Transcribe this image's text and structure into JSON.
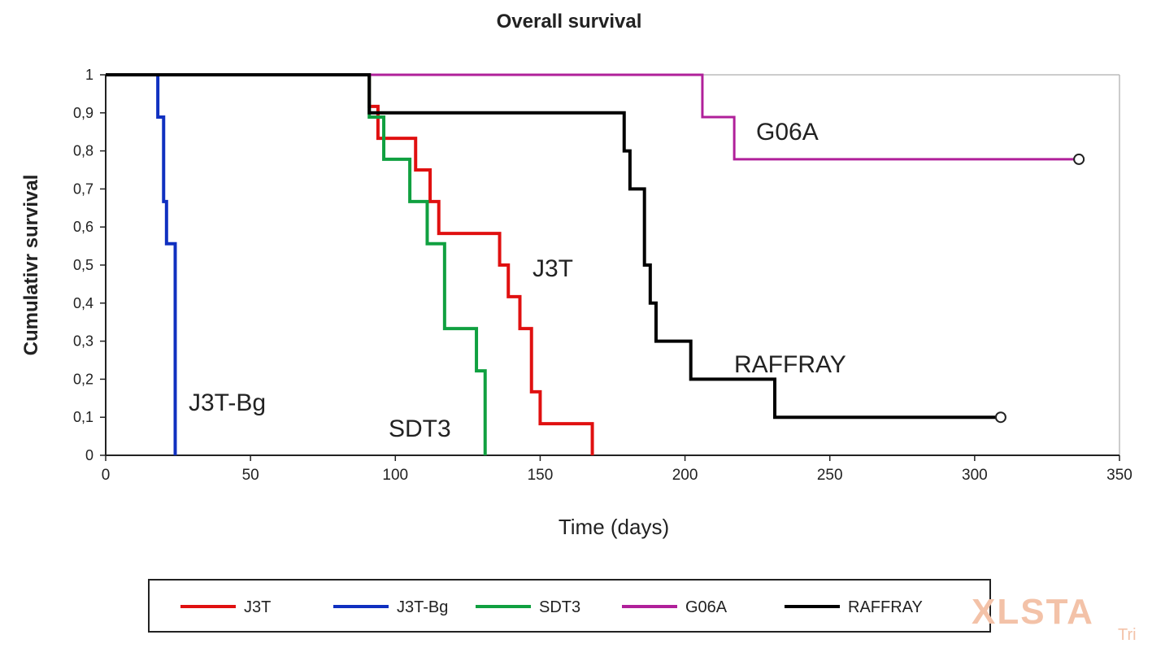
{
  "chart_data": {
    "type": "line",
    "subtype": "kaplan-meier step",
    "title": "Overall survival",
    "xlabel": "Time  (days)",
    "ylabel": "Cumulativr survival",
    "xlim": [
      0,
      350
    ],
    "ylim": [
      0,
      1
    ],
    "xticks": [
      "0",
      "50",
      "100",
      "150",
      "200",
      "250",
      "300",
      "350"
    ],
    "xtick_values": [
      0,
      50,
      100,
      150,
      200,
      250,
      300,
      350
    ],
    "yticks": [
      "0",
      "0,1",
      "0,2",
      "0,3",
      "0,4",
      "0,5",
      "0,6",
      "0,7",
      "0,8",
      "0,9",
      "1"
    ],
    "ytick_values": [
      0,
      0.1,
      0.2,
      0.3,
      0.4,
      0.5,
      0.6,
      0.7,
      0.8,
      0.9,
      1
    ],
    "legend_position": "bottom",
    "series": [
      {
        "name": "J3T",
        "color": "#e01010",
        "annotation": "J3T",
        "steps": [
          [
            0,
            1
          ],
          [
            91,
            0.917
          ],
          [
            94,
            0.833
          ],
          [
            107,
            0.75
          ],
          [
            112,
            0.667
          ],
          [
            115,
            0.583
          ],
          [
            136,
            0.5
          ],
          [
            139,
            0.417
          ],
          [
            143,
            0.333
          ],
          [
            147,
            0.167
          ],
          [
            150,
            0.083
          ],
          [
            168,
            0
          ]
        ],
        "censored": []
      },
      {
        "name": "J3T-Bg",
        "color": "#1030c0",
        "annotation": "J3T-Bg",
        "steps": [
          [
            0,
            1
          ],
          [
            18,
            0.889
          ],
          [
            20,
            0.667
          ],
          [
            21,
            0.556
          ],
          [
            24,
            0
          ]
        ],
        "censored": []
      },
      {
        "name": "SDT3",
        "color": "#10a040",
        "annotation": "SDT3",
        "steps": [
          [
            0,
            1
          ],
          [
            91,
            0.889
          ],
          [
            96,
            0.778
          ],
          [
            105,
            0.667
          ],
          [
            111,
            0.556
          ],
          [
            117,
            0.333
          ],
          [
            128,
            0.222
          ],
          [
            131,
            0
          ]
        ],
        "censored": []
      },
      {
        "name": "G06A",
        "color": "#b0209a",
        "annotation": "G06A",
        "steps": [
          [
            0,
            1
          ],
          [
            206,
            0.889
          ],
          [
            217,
            0.778
          ],
          [
            336,
            0.778
          ]
        ],
        "censored": [
          [
            336,
            0.778
          ]
        ]
      },
      {
        "name": "RAFFRAY",
        "color": "#000000",
        "annotation": "RAFFRAY",
        "steps": [
          [
            0,
            1
          ],
          [
            91,
            0.9
          ],
          [
            179,
            0.8
          ],
          [
            181,
            0.7
          ],
          [
            186,
            0.5
          ],
          [
            188,
            0.4
          ],
          [
            190,
            0.3
          ],
          [
            202,
            0.2
          ],
          [
            231,
            0.1
          ],
          [
            309,
            0.1
          ]
        ],
        "censored": [
          [
            309,
            0.1
          ]
        ]
      }
    ]
  },
  "watermark": "XLSTAT Trial"
}
